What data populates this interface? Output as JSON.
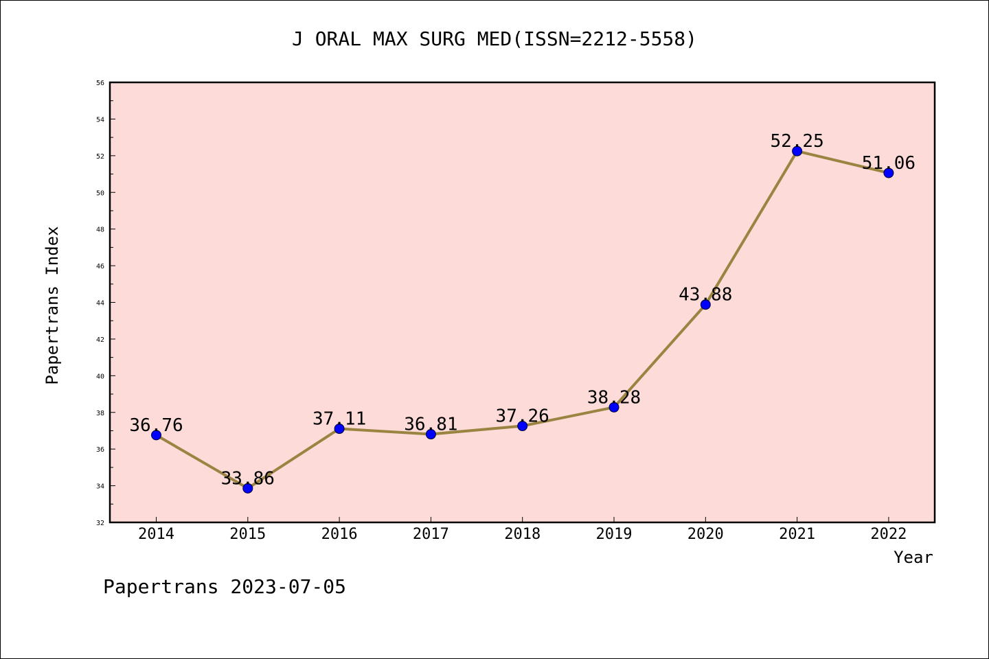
{
  "chart_data": {
    "type": "line",
    "title": "J ORAL MAX SURG MED(ISSN=2212-5558)",
    "xlabel": "Year",
    "ylabel": "Papertrans Index",
    "categories": [
      "2014",
      "2015",
      "2016",
      "2017",
      "2018",
      "2019",
      "2020",
      "2021",
      "2022"
    ],
    "values": [
      36.76,
      33.86,
      37.11,
      36.81,
      37.26,
      38.28,
      43.88,
      52.25,
      51.06
    ],
    "data_labels": [
      "36.76",
      "33.86",
      "37.11",
      "36.81",
      "37.26",
      "38.28",
      "43.88",
      "52.25",
      "51.06"
    ],
    "ylim": [
      32,
      56
    ],
    "yticks": [
      "32",
      "34",
      "36",
      "38",
      "40",
      "42",
      "44",
      "46",
      "48",
      "50",
      "52",
      "54",
      "56"
    ],
    "grid": false,
    "colors": {
      "plot_background": "#fddbd9",
      "line": "#9a8441",
      "marker": "#0000ff"
    }
  },
  "footer": "Papertrans 2023-07-05"
}
